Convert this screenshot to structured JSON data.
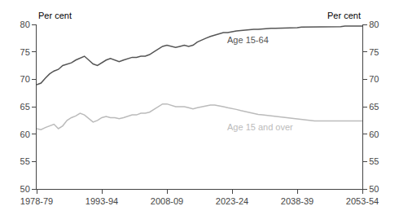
{
  "chart_data": {
    "type": "line",
    "ylabel": "Per cent",
    "y2label": "Per cent",
    "x": [
      1978.5,
      1979.5,
      1980.5,
      1981.5,
      1982.5,
      1983.5,
      1984.5,
      1985.5,
      1986.5,
      1987.5,
      1988.5,
      1989.5,
      1990.5,
      1991.5,
      1992.5,
      1993.5,
      1994.5,
      1995.5,
      1996.5,
      1997.5,
      1998.5,
      1999.5,
      2000.5,
      2001.5,
      2002.5,
      2003.5,
      2004.5,
      2005.5,
      2006.5,
      2007.5,
      2008.5,
      2009.5,
      2010.5,
      2011.5,
      2012.5,
      2013.5,
      2014.5,
      2015.5,
      2016.5,
      2017.5,
      2018.5,
      2019.5,
      2020.5,
      2021.5,
      2022.5,
      2023.5,
      2024.5,
      2025.5,
      2026.5,
      2027.5,
      2028.5,
      2029.5,
      2030.5,
      2031.5,
      2032.5,
      2033.5,
      2034.5,
      2035.5,
      2036.5,
      2037.5,
      2038.5,
      2039.5,
      2040.5,
      2041.5,
      2042.5,
      2043.5,
      2044.5,
      2045.5,
      2046.5,
      2047.5,
      2048.5,
      2049.5,
      2050.5,
      2051.5,
      2052.5,
      2053.5
    ],
    "series": [
      {
        "color": "#555555",
        "values": [
          69.0,
          69.3,
          70.2,
          71.0,
          71.5,
          71.8,
          72.5,
          72.8,
          73.0,
          73.5,
          73.8,
          74.2,
          73.5,
          72.8,
          72.5,
          73.0,
          73.5,
          73.8,
          73.5,
          73.2,
          73.5,
          73.8,
          74.0,
          74.0,
          74.2,
          74.2,
          74.5,
          75.0,
          75.5,
          76.0,
          76.2,
          76.0,
          75.8,
          76.0,
          76.2,
          76.0,
          76.2,
          76.8,
          77.2,
          77.5,
          77.8,
          78.0,
          78.2,
          78.5,
          78.5,
          78.7,
          78.8,
          78.9,
          79.0,
          79.0,
          79.1,
          79.1,
          79.2,
          79.2,
          79.3,
          79.3,
          79.3,
          79.4,
          79.4,
          79.4,
          79.4,
          79.5,
          79.5,
          79.5,
          79.5,
          79.5,
          79.6,
          79.6,
          79.6,
          79.6,
          79.6,
          79.7,
          79.7,
          79.7,
          79.7,
          79.7
        ]
      },
      {
        "color": "#bbbbbb",
        "values": [
          61.0,
          60.8,
          61.2,
          61.5,
          61.8,
          61.0,
          61.5,
          62.5,
          63.0,
          63.3,
          63.8,
          63.5,
          62.8,
          62.2,
          62.5,
          63.0,
          63.2,
          63.0,
          63.0,
          62.8,
          63.0,
          63.2,
          63.5,
          63.5,
          63.8,
          63.8,
          64.0,
          64.5,
          65.0,
          65.5,
          65.5,
          65.2,
          65.0,
          65.0,
          65.0,
          64.8,
          64.6,
          64.8,
          65.0,
          65.2,
          65.3,
          65.3,
          65.2,
          65.0,
          64.8,
          64.7,
          64.5,
          64.3,
          64.1,
          63.9,
          63.7,
          63.6,
          63.5,
          63.4,
          63.3,
          63.2,
          63.1,
          63.0,
          62.9,
          62.8,
          62.7,
          62.6,
          62.5,
          62.5,
          62.4,
          62.4,
          62.4,
          62.3,
          62.3,
          62.3,
          62.3,
          62.3,
          62.3,
          62.3,
          62.3,
          62.4
        ]
      }
    ],
    "annotations": [
      {
        "text": "Age 15-64",
        "x": 2022.0,
        "y": 77.2,
        "color": "#555555"
      },
      {
        "text": "Age 15 and over",
        "x": 2022.0,
        "y": 61.3,
        "color": "#bbbbbb"
      }
    ],
    "xlim": [
      1978.5,
      2053.5
    ],
    "xticks": [
      {
        "value": 1978.5,
        "label": "1978-79"
      },
      {
        "value": 1993.5,
        "label": "1993-94"
      },
      {
        "value": 2008.5,
        "label": "2008-09"
      },
      {
        "value": 2023.5,
        "label": "2023-24"
      },
      {
        "value": 2038.5,
        "label": "2038-39"
      },
      {
        "value": 2053.5,
        "label": "2053-54"
      }
    ],
    "ylim": [
      50,
      80
    ],
    "yticks": [
      50,
      55,
      60,
      65,
      70,
      75,
      80
    ],
    "y2lim": [
      50,
      80
    ],
    "y2ticks": [
      50,
      55,
      60,
      65,
      70,
      75,
      80
    ],
    "grid": false
  }
}
